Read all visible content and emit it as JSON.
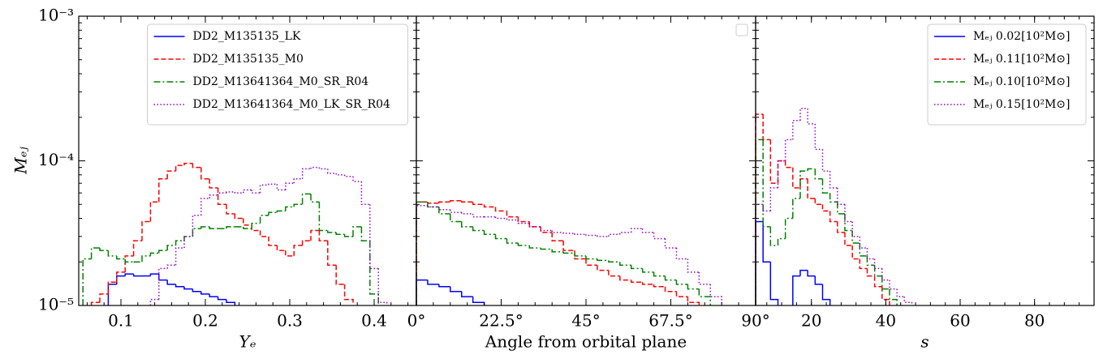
{
  "chart_data": [
    {
      "type": "histogram",
      "xlabel": "Yₑ",
      "ylabel": "Mₑⱼ",
      "log_y": true,
      "legend": "upper center",
      "xlim": [
        0.05,
        0.45
      ],
      "xticks": [
        0.1,
        0.2,
        0.3,
        0.4
      ],
      "ylim": [
        1e-05,
        0.001
      ],
      "yticks": [
        {
          "value": 1e-05,
          "label": "10⁻⁵"
        },
        {
          "value": 0.0001,
          "label": "10⁻⁴"
        },
        {
          "value": 0.001,
          "label": "10⁻³"
        }
      ],
      "bins": [
        0.055,
        0.065,
        0.075,
        0.085,
        0.095,
        0.105,
        0.115,
        0.125,
        0.135,
        0.145,
        0.155,
        0.165,
        0.175,
        0.185,
        0.195,
        0.205,
        0.215,
        0.225,
        0.235,
        0.245,
        0.255,
        0.265,
        0.275,
        0.285,
        0.295,
        0.305,
        0.315,
        0.325,
        0.335,
        0.345,
        0.355,
        0.365,
        0.375,
        0.385,
        0.395,
        0.405,
        0.415,
        0.425,
        0.435,
        0.445
      ],
      "series": [
        {
          "name": "DD2_M135135_LK",
          "color": "#0000ff",
          "linestyle": "solid",
          "values": [
            null,
            null,
            null,
            1.4e-05,
            1.6e-05,
            1.65e-05,
            1.6e-05,
            1.6e-05,
            1.65e-05,
            1.5e-05,
            1.4e-05,
            1.35e-05,
            1.3e-05,
            1.25e-05,
            1.2e-05,
            1.15e-05,
            1.1e-05,
            1.05e-05,
            null,
            null,
            null,
            null,
            null,
            null,
            null,
            null,
            null,
            null,
            null,
            null,
            null,
            null,
            null,
            null,
            null,
            null,
            null,
            null,
            null
          ]
        },
        {
          "name": "DD2_M135135_M0",
          "color": "#ff0000",
          "linestyle": "dashed",
          "values": [
            null,
            1.05e-05,
            1.2e-05,
            1.45e-05,
            1.7e-05,
            2.2e-05,
            2.8e-05,
            3.8e-05,
            5.2e-05,
            7.5e-05,
            8.5e-05,
            9.3e-05,
            9.6e-05,
            9e-05,
            7.5e-05,
            6.5e-05,
            5e-05,
            4.3e-05,
            4e-05,
            3.6e-05,
            3.3e-05,
            3e-05,
            2.6e-05,
            2.4e-05,
            2.2e-05,
            2.6e-05,
            2.8e-05,
            3.3e-05,
            2.8e-05,
            1.9e-05,
            1.4e-05,
            1.1e-05,
            null,
            null,
            null,
            null,
            null,
            null,
            null
          ]
        },
        {
          "name": "DD2_M13641364_M0_SR_R04",
          "color": "#008000",
          "linestyle": "dashdot",
          "values": [
            2.1e-05,
            2.5e-05,
            2.4e-05,
            2.2e-05,
            2.1e-05,
            2e-05,
            2e-05,
            2.2e-05,
            2.3e-05,
            2.4e-05,
            2.6e-05,
            2.8e-05,
            3e-05,
            3.4e-05,
            3.5e-05,
            3.4e-05,
            3.4e-05,
            3.5e-05,
            3.5e-05,
            3.4e-05,
            3.7e-05,
            4.2e-05,
            4.4e-05,
            4.5e-05,
            4.8e-05,
            5e-05,
            5.9e-05,
            5.2e-05,
            3.3e-05,
            3.2e-05,
            3.1e-05,
            3e-05,
            3.5e-05,
            2.8e-05,
            1.2e-05,
            null,
            null,
            null,
            null
          ]
        },
        {
          "name": "DD2_M13641364_M0_LK_SR_R04",
          "color": "#9400d3",
          "linestyle": "dotted",
          "values": [
            null,
            null,
            null,
            null,
            null,
            null,
            null,
            null,
            1.1e-05,
            1.8e-05,
            1.9e-05,
            2.5e-05,
            3e-05,
            4.2e-05,
            5.5e-05,
            5.8e-05,
            6e-05,
            6.1e-05,
            6e-05,
            6.3e-05,
            6e-05,
            6.8e-05,
            6.9e-05,
            6.3e-05,
            7e-05,
            7.5e-05,
            8.8e-05,
            9e-05,
            8.8e-05,
            8.2e-05,
            8e-05,
            7.8e-05,
            7.2e-05,
            5e-05,
            1.8e-05,
            1.05e-05,
            null,
            null,
            null
          ]
        }
      ]
    },
    {
      "type": "histogram",
      "xlabel": "Angle from orbital plane",
      "log_y": true,
      "xlim": [
        0,
        90
      ],
      "xticks": [
        {
          "value": 0,
          "label": "0°"
        },
        {
          "value": 22.5,
          "label": "22.5°"
        },
        {
          "value": 45,
          "label": "45°"
        },
        {
          "value": 67.5,
          "label": "67.5°"
        },
        {
          "value": 90,
          "label": "90°"
        }
      ],
      "ylim": [
        1e-05,
        0.001
      ],
      "yticks": [
        1e-05,
        0.0001,
        0.001
      ],
      "bins": [
        0,
        3,
        6,
        9,
        12,
        15,
        18,
        21,
        24,
        27,
        30,
        33,
        36,
        39,
        42,
        45,
        48,
        51,
        54,
        57,
        60,
        63,
        66,
        69,
        72,
        75,
        78,
        81,
        84,
        87,
        90
      ],
      "series": [
        {
          "color": "#0000ff",
          "linestyle": "solid",
          "values": [
            1.5e-05,
            1.4e-05,
            1.35e-05,
            1.25e-05,
            1.15e-05,
            1.05e-05,
            null,
            null,
            null,
            null,
            null,
            null,
            null,
            null,
            null,
            null,
            null,
            null,
            null,
            null,
            null,
            null,
            null,
            null,
            null,
            null,
            null,
            null,
            null,
            null
          ]
        },
        {
          "color": "#ff0000",
          "linestyle": "dashed",
          "values": [
            5.2e-05,
            5.1e-05,
            5.2e-05,
            5.3e-05,
            5.2e-05,
            5e-05,
            4.8e-05,
            4.5e-05,
            4.1e-05,
            3.8e-05,
            3.5e-05,
            3.2e-05,
            2.8e-05,
            2.4e-05,
            2.1e-05,
            1.9e-05,
            1.75e-05,
            1.6e-05,
            1.5e-05,
            1.45e-05,
            1.4e-05,
            1.35e-05,
            1.25e-05,
            1.15e-05,
            1.05e-05,
            null,
            null,
            null,
            null,
            null
          ]
        },
        {
          "color": "#008000",
          "linestyle": "dashdot",
          "values": [
            5.2e-05,
            4.8e-05,
            4.3e-05,
            3.8e-05,
            3.5e-05,
            3.3e-05,
            3.1e-05,
            2.9e-05,
            2.7e-05,
            2.6e-05,
            2.5e-05,
            2.45e-05,
            2.35e-05,
            2.3e-05,
            2.2e-05,
            2.1e-05,
            2.05e-05,
            2e-05,
            1.9e-05,
            1.8e-05,
            1.7e-05,
            1.6e-05,
            1.5e-05,
            1.4e-05,
            1.3e-05,
            1.15e-05,
            null,
            null,
            null,
            null
          ]
        },
        {
          "color": "#9400d3",
          "linestyle": "dotted",
          "values": [
            4.9e-05,
            4.8e-05,
            4.6e-05,
            4.4e-05,
            4.3e-05,
            4.1e-05,
            4.1e-05,
            4e-05,
            3.9e-05,
            3.7e-05,
            3.5e-05,
            3.3e-05,
            3.2e-05,
            3.15e-05,
            3.1e-05,
            3.05e-05,
            3e-05,
            3.1e-05,
            3.2e-05,
            3.4e-05,
            3.2e-05,
            2.9e-05,
            2.5e-05,
            2.1e-05,
            1.7e-05,
            1.4e-05,
            1.15e-05,
            null,
            null,
            null
          ]
        }
      ]
    },
    {
      "type": "histogram",
      "xlabel": "s",
      "log_y": true,
      "legend": "upper right",
      "xlim": [
        5,
        96
      ],
      "xticks": [
        20,
        40,
        60,
        80
      ],
      "ylim": [
        1e-05,
        0.001
      ],
      "yticks": [
        1e-05,
        0.0001,
        0.001
      ],
      "bins": [
        5,
        7,
        9,
        11,
        13,
        15,
        17,
        19,
        21,
        23,
        25,
        27,
        29,
        31,
        33,
        35,
        37,
        39,
        41,
        43,
        45,
        47
      ],
      "series": [
        {
          "name": "Mₑⱼ 0.02[10²M⊙]",
          "color": "#0000ff",
          "linestyle": "solid",
          "values": [
            3.8e-05,
            2e-05,
            1.1e-05,
            null,
            null,
            1.6e-05,
            1.75e-05,
            1.6e-05,
            1.4e-05,
            1.1e-05,
            null,
            null,
            null,
            null,
            null,
            null,
            null,
            null,
            null,
            null,
            null
          ]
        },
        {
          "name": "Mₑⱼ 0.11[10²M⊙]",
          "color": "#ff0000",
          "linestyle": "dashed",
          "values": [
            0.00021,
            0.00014,
            7e-05,
            0.0001,
            9e-05,
            6.5e-05,
            7.5e-05,
            5.5e-05,
            5e-05,
            4.5e-05,
            3.8e-05,
            3.2e-05,
            2.6e-05,
            2.1e-05,
            1.8e-05,
            1.6e-05,
            1.35e-05,
            1.1e-05,
            null,
            null,
            null
          ]
        },
        {
          "name": "Mₑⱼ 0.10[10²M⊙]",
          "color": "#008000",
          "linestyle": "dashdot",
          "values": [
            0.00014,
            3.5e-05,
            2.6e-05,
            2.9e-05,
            4e-05,
            5.5e-05,
            8.5e-05,
            8.8e-05,
            7.5e-05,
            6e-05,
            5.2e-05,
            4.3e-05,
            3.3e-05,
            2.7e-05,
            2.2e-05,
            1.9e-05,
            1.6e-05,
            1.3e-05,
            1.1e-05,
            null,
            null
          ]
        },
        {
          "name": "Mₑⱼ 0.15[10²M⊙]",
          "color": "#9400d3",
          "linestyle": "dotted",
          "values": [
            5e-05,
            4.5e-05,
            6.5e-05,
            0.0001,
            0.00014,
            0.00019,
            0.00023,
            0.00018,
            0.00012,
            8.5e-05,
            6.5e-05,
            5e-05,
            3.8e-05,
            3e-05,
            2.5e-05,
            2.1e-05,
            1.8e-05,
            1.5e-05,
            1.3e-05,
            1.15e-05,
            1.05e-05
          ]
        }
      ]
    }
  ]
}
